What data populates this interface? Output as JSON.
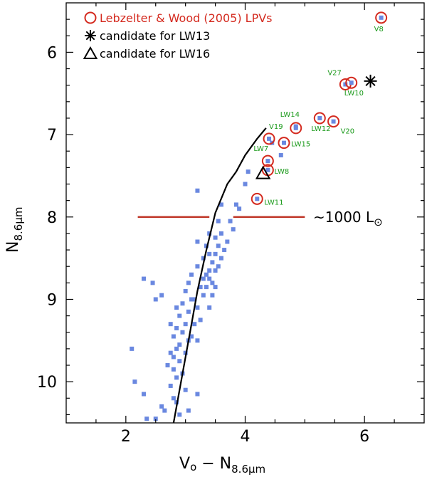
{
  "chart_data": {
    "type": "scatter",
    "xlabel": {
      "main": "V",
      "sub0": "o",
      "mid": " − N",
      "sub": "8.6μm"
    },
    "ylabel": {
      "main": "N",
      "sub": "8.6μm"
    },
    "xlim": [
      1.0,
      7.0
    ],
    "ylim": [
      10.5,
      5.4
    ],
    "x_major_ticks": [
      2,
      4,
      6
    ],
    "x_tick_labels": [
      "2",
      "4",
      "6"
    ],
    "y_major_ticks": [
      6,
      7,
      8,
      9,
      10
    ],
    "y_tick_labels": [
      "6",
      "7",
      "8",
      "9",
      "10"
    ],
    "legend": [
      {
        "label": "Lebzelter & Wood (2005) LPVs",
        "color": "#d42a1f",
        "marker": "circle"
      },
      {
        "label": "candidate for LW13",
        "color": "#000000",
        "marker": "asterisk"
      },
      {
        "label": "candidate for LW16",
        "color": "#000000",
        "marker": "triangle"
      }
    ],
    "field_stars": [
      [
        2.1,
        9.6
      ],
      [
        2.15,
        10.0
      ],
      [
        2.3,
        8.75
      ],
      [
        2.3,
        10.15
      ],
      [
        2.35,
        10.45
      ],
      [
        2.45,
        8.8
      ],
      [
        2.5,
        9.0
      ],
      [
        2.5,
        10.45
      ],
      [
        2.6,
        8.95
      ],
      [
        2.6,
        10.3
      ],
      [
        2.65,
        10.35
      ],
      [
        2.7,
        9.8
      ],
      [
        2.75,
        9.3
      ],
      [
        2.75,
        9.65
      ],
      [
        2.75,
        10.05
      ],
      [
        2.8,
        9.45
      ],
      [
        2.8,
        9.7
      ],
      [
        2.8,
        9.85
      ],
      [
        2.8,
        10.2
      ],
      [
        2.85,
        9.1
      ],
      [
        2.85,
        9.35
      ],
      [
        2.85,
        9.6
      ],
      [
        2.85,
        9.95
      ],
      [
        2.85,
        10.25
      ],
      [
        2.9,
        9.2
      ],
      [
        2.9,
        9.55
      ],
      [
        2.9,
        9.75
      ],
      [
        2.9,
        10.4
      ],
      [
        2.95,
        9.05
      ],
      [
        2.95,
        9.4
      ],
      [
        2.95,
        9.9
      ],
      [
        3.0,
        8.9
      ],
      [
        3.0,
        9.3
      ],
      [
        3.0,
        9.65
      ],
      [
        3.0,
        10.1
      ],
      [
        3.05,
        8.8
      ],
      [
        3.05,
        9.15
      ],
      [
        3.05,
        9.5
      ],
      [
        3.05,
        10.35
      ],
      [
        3.1,
        8.7
      ],
      [
        3.1,
        9.0
      ],
      [
        3.1,
        9.45
      ],
      [
        3.15,
        9.0
      ],
      [
        3.15,
        9.3
      ],
      [
        3.2,
        8.3
      ],
      [
        3.2,
        8.6
      ],
      [
        3.2,
        9.1
      ],
      [
        3.2,
        9.5
      ],
      [
        3.2,
        10.15
      ],
      [
        3.25,
        8.85
      ],
      [
        3.25,
        9.25
      ],
      [
        3.3,
        8.5
      ],
      [
        3.3,
        8.75
      ],
      [
        3.3,
        8.95
      ],
      [
        3.35,
        8.35
      ],
      [
        3.35,
        8.7
      ],
      [
        3.35,
        8.85
      ],
      [
        3.4,
        8.2
      ],
      [
        3.4,
        8.45
      ],
      [
        3.4,
        8.65
      ],
      [
        3.4,
        8.75
      ],
      [
        3.4,
        9.1
      ],
      [
        3.45,
        8.55
      ],
      [
        3.45,
        8.8
      ],
      [
        3.45,
        8.95
      ],
      [
        3.5,
        8.25
      ],
      [
        3.5,
        8.45
      ],
      [
        3.5,
        8.65
      ],
      [
        3.5,
        8.85
      ],
      [
        3.55,
        8.05
      ],
      [
        3.55,
        8.35
      ],
      [
        3.55,
        8.6
      ],
      [
        3.6,
        7.85
      ],
      [
        3.6,
        8.2
      ],
      [
        3.6,
        8.5
      ],
      [
        3.65,
        8.4
      ],
      [
        3.7,
        8.3
      ],
      [
        3.75,
        8.05
      ],
      [
        3.8,
        8.15
      ],
      [
        3.85,
        7.85
      ],
      [
        3.9,
        7.9
      ],
      [
        4.0,
        7.6
      ],
      [
        4.45,
        7.1
      ],
      [
        4.6,
        7.25
      ],
      [
        4.85,
        6.9
      ],
      [
        4.05,
        7.45
      ],
      [
        3.2,
        7.68
      ]
    ],
    "lpv_stars": [
      {
        "x": 4.4,
        "y": 7.05,
        "label": "V19"
      },
      {
        "x": 4.85,
        "y": 6.92,
        "label": "LW14"
      },
      {
        "x": 4.65,
        "y": 7.1,
        "label": "LW15"
      },
      {
        "x": 5.25,
        "y": 6.8,
        "label": "LW12"
      },
      {
        "x": 5.48,
        "y": 6.84,
        "label": "V20"
      },
      {
        "x": 4.38,
        "y": 7.32,
        "label": "LW7"
      },
      {
        "x": 4.38,
        "y": 7.43,
        "label": "LW8"
      },
      {
        "x": 4.2,
        "y": 7.78,
        "label": "LW11"
      },
      {
        "x": 5.68,
        "y": 6.39,
        "label": "V27"
      },
      {
        "x": 5.78,
        "y": 6.37,
        "label": "LW10"
      },
      {
        "x": 6.28,
        "y": 5.58,
        "label": "V8"
      }
    ],
    "lw13_candidate": {
      "x": 6.1,
      "y": 6.35
    },
    "lw16_candidate": {
      "x": 4.3,
      "y": 7.48
    },
    "isochrone": [
      [
        2.8,
        10.5
      ],
      [
        2.95,
        9.9
      ],
      [
        3.1,
        9.3
      ],
      [
        3.2,
        8.9
      ],
      [
        3.35,
        8.4
      ],
      [
        3.5,
        7.95
      ],
      [
        3.7,
        7.6
      ],
      [
        3.85,
        7.45
      ],
      [
        4.0,
        7.25
      ],
      [
        4.2,
        7.05
      ],
      [
        4.35,
        6.92
      ]
    ],
    "luminosity_line": {
      "y": 8.0,
      "segments": [
        [
          2.2,
          3.4
        ],
        [
          3.8,
          5.0
        ]
      ],
      "label": "~1000 L",
      "sun_symbol": "⊙"
    }
  }
}
